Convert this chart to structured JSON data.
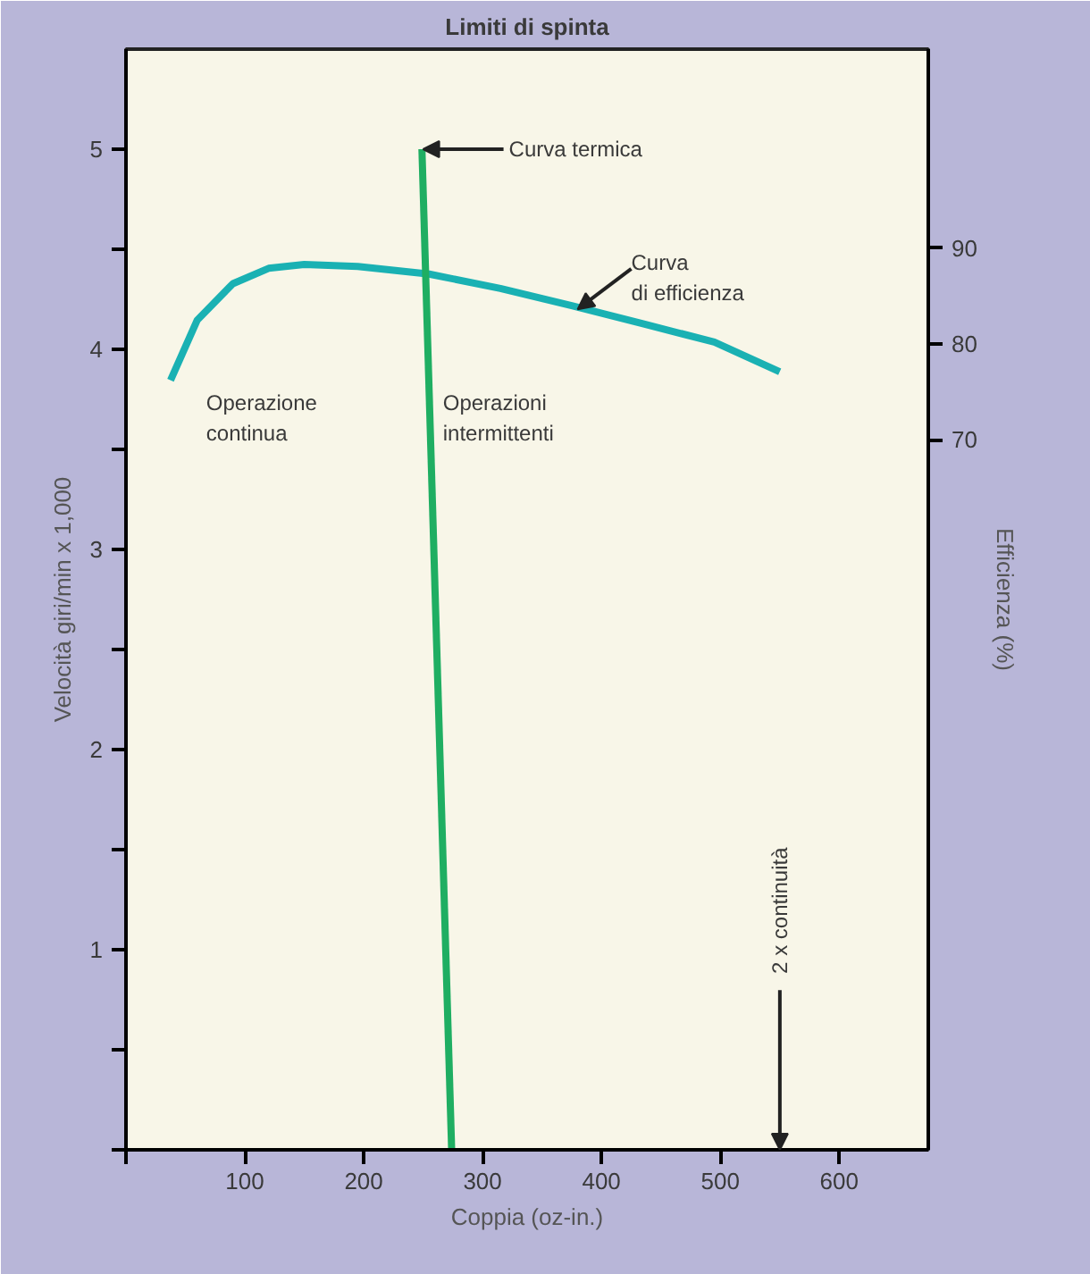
{
  "chart_data": {
    "type": "line",
    "title": "Limiti di spinta",
    "xlabel": "Coppia (oz-in.)",
    "ylabel": "Velocità giri/min x 1,000",
    "y2label": "Efficienza (%)",
    "xlim": [
      0,
      675
    ],
    "ylim": [
      0,
      5.5
    ],
    "y2lim": [
      -4.2,
      110.8
    ],
    "xticks": [
      {
        "value": 0,
        "label": null
      },
      100,
      200,
      300,
      400,
      500,
      600
    ],
    "yticks": [
      {
        "value": 0,
        "label": null
      },
      {
        "value": 0.5,
        "label": null
      },
      1,
      {
        "value": 1.5,
        "label": null
      },
      2,
      {
        "value": 2.5,
        "label": null
      },
      3,
      {
        "value": 3.5,
        "label": null
      },
      4,
      {
        "value": 4.5,
        "label": null
      },
      5
    ],
    "y2ticks": [
      70,
      80,
      90
    ],
    "series": [
      {
        "color": "#1ab1b3",
        "axis": "y2",
        "x": [
          37.5,
          60,
          90,
          120,
          150,
          195,
          255,
          315,
          375,
          435,
          495,
          550
        ],
        "values": [
          76.2,
          82.5,
          86.3,
          87.9,
          88.3,
          88.1,
          87.3,
          85.8,
          84.0,
          82.1,
          80.2,
          77.1
        ]
      },
      {
        "color": "#1fae62",
        "x": [
          249,
          274
        ],
        "values": [
          5,
          0
        ]
      }
    ],
    "annotations": [
      {
        "text": "Curva termica",
        "x": 250,
        "y": 5
      },
      {
        "text": "Curva\ndi efficienza",
        "x": 380,
        "y": 4.2
      },
      "Operazione\ncontinua",
      "Operazioni\nintermittenti",
      "2 x continuità"
    ],
    "grid": false,
    "line_style": "solid",
    "marker": "none"
  }
}
